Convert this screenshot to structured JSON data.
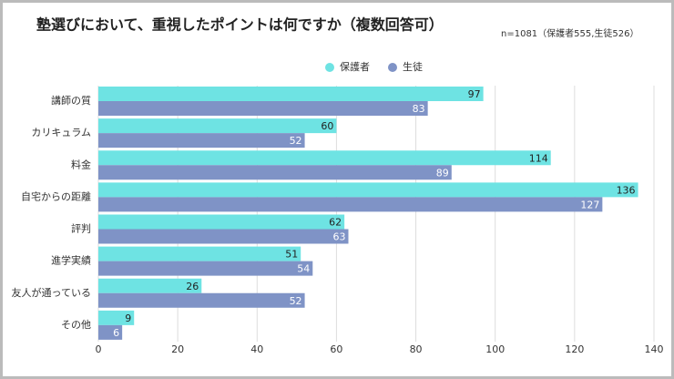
{
  "chart_data": {
    "type": "bar",
    "title": "塾選びにおいて、重視したポイントは何ですか（複数回答可）",
    "subtitle": "n=1081（保護者555,生徒526）",
    "categories": [
      "講師の質",
      "カリキュラム",
      "料金",
      "自宅からの距離",
      "評判",
      "進学実績",
      "友人が通っている",
      "その他"
    ],
    "series": [
      {
        "name": "保護者",
        "color": "#6ee3e3",
        "label_color": "#222222",
        "values": [
          97,
          60,
          114,
          136,
          62,
          51,
          26,
          9
        ]
      },
      {
        "name": "生徒",
        "color": "#7f93c6",
        "label_color": "#ffffff",
        "values": [
          83,
          52,
          89,
          127,
          63,
          54,
          52,
          6
        ]
      }
    ],
    "xlim": [
      0,
      140
    ],
    "xticks": [
      0,
      20,
      40,
      60,
      80,
      100,
      120,
      140
    ],
    "grid": true
  }
}
